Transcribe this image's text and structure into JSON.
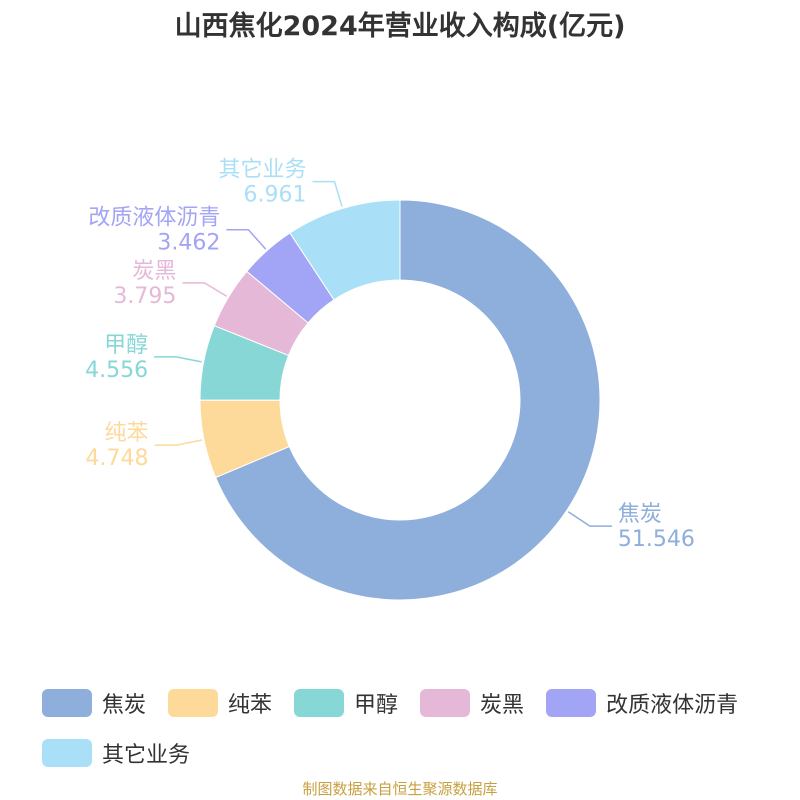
{
  "chart_data": {
    "type": "donut",
    "title": "山西焦化2024年营业收入构成(亿元)",
    "categories": [
      "焦炭",
      "纯苯",
      "甲醇",
      "炭黑",
      "改质液体沥青",
      "其它业务"
    ],
    "values": [
      51.546,
      4.748,
      4.556,
      3.795,
      3.462,
      6.961
    ],
    "colors": [
      "#8eaedb",
      "#fdd99a",
      "#87d7d7",
      "#e6b8d8",
      "#a2a4f5",
      "#aadff8"
    ],
    "legend": "bottom",
    "source": "制图数据来自恒生聚源数据库"
  }
}
